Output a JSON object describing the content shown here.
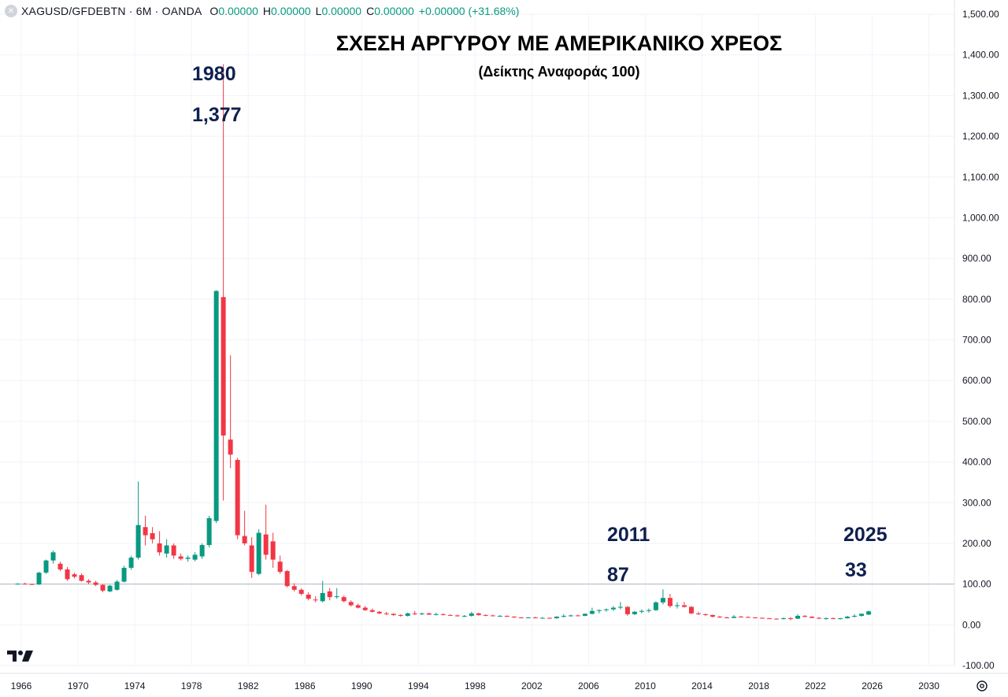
{
  "header": {
    "symbol": "XAGUSD/GFDEBTN · 6M · OANDA",
    "o_label": "O",
    "o_value": "0.00000",
    "h_label": "H",
    "h_value": "0.00000",
    "l_label": "L",
    "l_value": "0.00000",
    "c_label": "C",
    "c_value": "0.00000",
    "change": "+0.00000 (+31.68%)"
  },
  "annotations": {
    "peak_year": "1980",
    "peak_value": "1,377",
    "mid_year": "2011",
    "mid_value": "87",
    "last_year": "2025",
    "last_value": "33"
  },
  "colors": {
    "up": "#089981",
    "down": "#f23645",
    "grid": "#f0f3fa",
    "baseline": "#b2b5be",
    "annotation": "#0f1f4f"
  },
  "chart_data": {
    "type": "candlestick",
    "title": "ΣΧΕΣΗ ΑΡΓΥΡΟΥ ΜΕ ΑΜΕΡΙΚΑΝΙΚΟ ΧΡΕΟΣ",
    "subtitle": "(Δείκτης Αναφοράς 100)",
    "ylim": [
      -100,
      1500
    ],
    "xlim": [
      1964.5,
      2031.8
    ],
    "y_ticks": [
      "-100.00",
      "0.00",
      "100.00",
      "200.00",
      "300.00",
      "400.00",
      "500.00",
      "600.00",
      "700.00",
      "800.00",
      "900.00",
      "1,000.00",
      "1,100.00",
      "1,200.00",
      "1,300.00",
      "1,400.00",
      "1,500.00"
    ],
    "x_ticks": [
      "1966",
      "1970",
      "1974",
      "1978",
      "1982",
      "1986",
      "1990",
      "1994",
      "1998",
      "2002",
      "2006",
      "2010",
      "2014",
      "2018",
      "2022",
      "2026",
      "2030"
    ],
    "reference_line": 100,
    "grid": true,
    "candles": [
      {
        "t": 1965.75,
        "o": 100,
        "h": 102,
        "l": 99,
        "c": 101
      },
      {
        "t": 1966.25,
        "o": 101,
        "h": 103,
        "l": 99,
        "c": 100
      },
      {
        "t": 1966.75,
        "o": 100,
        "h": 101,
        "l": 98,
        "c": 99
      },
      {
        "t": 1967.25,
        "o": 99,
        "h": 130,
        "l": 98,
        "c": 128
      },
      {
        "t": 1967.75,
        "o": 128,
        "h": 160,
        "l": 125,
        "c": 158
      },
      {
        "t": 1968.25,
        "o": 158,
        "h": 182,
        "l": 150,
        "c": 178
      },
      {
        "t": 1968.75,
        "o": 150,
        "h": 155,
        "l": 132,
        "c": 136
      },
      {
        "t": 1969.25,
        "o": 136,
        "h": 142,
        "l": 108,
        "c": 112
      },
      {
        "t": 1969.75,
        "o": 124,
        "h": 128,
        "l": 114,
        "c": 118
      },
      {
        "t": 1970.25,
        "o": 122,
        "h": 126,
        "l": 106,
        "c": 108
      },
      {
        "t": 1970.75,
        "o": 108,
        "h": 112,
        "l": 100,
        "c": 104
      },
      {
        "t": 1971.25,
        "o": 104,
        "h": 108,
        "l": 95,
        "c": 98
      },
      {
        "t": 1971.75,
        "o": 98,
        "h": 100,
        "l": 80,
        "c": 84
      },
      {
        "t": 1972.25,
        "o": 82,
        "h": 98,
        "l": 80,
        "c": 96
      },
      {
        "t": 1972.75,
        "o": 86,
        "h": 110,
        "l": 84,
        "c": 106
      },
      {
        "t": 1973.25,
        "o": 106,
        "h": 145,
        "l": 104,
        "c": 140
      },
      {
        "t": 1973.75,
        "o": 140,
        "h": 170,
        "l": 135,
        "c": 165
      },
      {
        "t": 1974.25,
        "o": 165,
        "h": 352,
        "l": 160,
        "c": 245
      },
      {
        "t": 1974.75,
        "o": 240,
        "h": 268,
        "l": 195,
        "c": 220
      },
      {
        "t": 1975.25,
        "o": 225,
        "h": 240,
        "l": 200,
        "c": 210
      },
      {
        "t": 1975.75,
        "o": 200,
        "h": 230,
        "l": 170,
        "c": 178
      },
      {
        "t": 1976.25,
        "o": 175,
        "h": 210,
        "l": 165,
        "c": 195
      },
      {
        "t": 1976.75,
        "o": 195,
        "h": 200,
        "l": 162,
        "c": 170
      },
      {
        "t": 1977.25,
        "o": 168,
        "h": 175,
        "l": 158,
        "c": 162
      },
      {
        "t": 1977.75,
        "o": 162,
        "h": 170,
        "l": 155,
        "c": 165
      },
      {
        "t": 1978.25,
        "o": 160,
        "h": 178,
        "l": 156,
        "c": 172
      },
      {
        "t": 1978.75,
        "o": 168,
        "h": 200,
        "l": 162,
        "c": 196
      },
      {
        "t": 1979.25,
        "o": 196,
        "h": 268,
        "l": 190,
        "c": 262
      },
      {
        "t": 1979.75,
        "o": 255,
        "h": 822,
        "l": 250,
        "c": 820
      },
      {
        "t": 1980.25,
        "o": 805,
        "h": 1377,
        "l": 305,
        "c": 465
      },
      {
        "t": 1980.75,
        "o": 455,
        "h": 662,
        "l": 385,
        "c": 418
      },
      {
        "t": 1981.25,
        "o": 405,
        "h": 410,
        "l": 210,
        "c": 220
      },
      {
        "t": 1981.75,
        "o": 218,
        "h": 280,
        "l": 195,
        "c": 200
      },
      {
        "t": 1982.25,
        "o": 195,
        "h": 215,
        "l": 115,
        "c": 130
      },
      {
        "t": 1982.75,
        "o": 125,
        "h": 235,
        "l": 122,
        "c": 226
      },
      {
        "t": 1983.25,
        "o": 222,
        "h": 295,
        "l": 160,
        "c": 172
      },
      {
        "t": 1983.75,
        "o": 205,
        "h": 226,
        "l": 140,
        "c": 160
      },
      {
        "t": 1984.25,
        "o": 155,
        "h": 170,
        "l": 125,
        "c": 130
      },
      {
        "t": 1984.75,
        "o": 132,
        "h": 135,
        "l": 92,
        "c": 95
      },
      {
        "t": 1985.25,
        "o": 95,
        "h": 102,
        "l": 82,
        "c": 86
      },
      {
        "t": 1985.75,
        "o": 86,
        "h": 90,
        "l": 72,
        "c": 76
      },
      {
        "t": 1986.25,
        "o": 74,
        "h": 80,
        "l": 60,
        "c": 64
      },
      {
        "t": 1986.75,
        "o": 62,
        "h": 70,
        "l": 55,
        "c": 60
      },
      {
        "t": 1987.25,
        "o": 58,
        "h": 108,
        "l": 55,
        "c": 78
      },
      {
        "t": 1987.75,
        "o": 82,
        "h": 90,
        "l": 60,
        "c": 68
      },
      {
        "t": 1988.25,
        "o": 68,
        "h": 90,
        "l": 64,
        "c": 70
      },
      {
        "t": 1988.75,
        "o": 68,
        "h": 72,
        "l": 55,
        "c": 58
      },
      {
        "t": 1989.25,
        "o": 56,
        "h": 60,
        "l": 45,
        "c": 48
      },
      {
        "t": 1989.75,
        "o": 48,
        "h": 52,
        "l": 40,
        "c": 42
      },
      {
        "t": 1990.25,
        "o": 42,
        "h": 46,
        "l": 34,
        "c": 36
      },
      {
        "t": 1990.75,
        "o": 36,
        "h": 40,
        "l": 30,
        "c": 32
      },
      {
        "t": 1991.25,
        "o": 32,
        "h": 34,
        "l": 26,
        "c": 28
      },
      {
        "t": 1991.75,
        "o": 28,
        "h": 32,
        "l": 24,
        "c": 27
      },
      {
        "t": 1992.25,
        "o": 27,
        "h": 28,
        "l": 22,
        "c": 24
      },
      {
        "t": 1992.75,
        "o": 24,
        "h": 26,
        "l": 20,
        "c": 22
      },
      {
        "t": 1993.25,
        "o": 22,
        "h": 30,
        "l": 20,
        "c": 28
      },
      {
        "t": 1993.75,
        "o": 28,
        "h": 34,
        "l": 24,
        "c": 26
      },
      {
        "t": 1994.25,
        "o": 26,
        "h": 30,
        "l": 24,
        "c": 28
      },
      {
        "t": 1994.75,
        "o": 28,
        "h": 30,
        "l": 24,
        "c": 25
      },
      {
        "t": 1995.25,
        "o": 25,
        "h": 30,
        "l": 23,
        "c": 26
      },
      {
        "t": 1995.75,
        "o": 26,
        "h": 28,
        "l": 23,
        "c": 24
      },
      {
        "t": 1996.25,
        "o": 24,
        "h": 26,
        "l": 22,
        "c": 23
      },
      {
        "t": 1996.75,
        "o": 23,
        "h": 25,
        "l": 20,
        "c": 21
      },
      {
        "t": 1997.25,
        "o": 21,
        "h": 24,
        "l": 19,
        "c": 22
      },
      {
        "t": 1997.75,
        "o": 22,
        "h": 32,
        "l": 20,
        "c": 28
      },
      {
        "t": 1998.25,
        "o": 28,
        "h": 30,
        "l": 22,
        "c": 24
      },
      {
        "t": 1998.75,
        "o": 24,
        "h": 26,
        "l": 21,
        "c": 23
      },
      {
        "t": 1999.25,
        "o": 23,
        "h": 25,
        "l": 21,
        "c": 22
      },
      {
        "t": 1999.75,
        "o": 22,
        "h": 24,
        "l": 20,
        "c": 22
      },
      {
        "t": 2000.25,
        "o": 22,
        "h": 23,
        "l": 19,
        "c": 20
      },
      {
        "t": 2000.75,
        "o": 20,
        "h": 21,
        "l": 17,
        "c": 18
      },
      {
        "t": 2001.25,
        "o": 18,
        "h": 19,
        "l": 16,
        "c": 17
      },
      {
        "t": 2001.75,
        "o": 17,
        "h": 19,
        "l": 16,
        "c": 18
      },
      {
        "t": 2002.25,
        "o": 18,
        "h": 20,
        "l": 16,
        "c": 17
      },
      {
        "t": 2002.75,
        "o": 17,
        "h": 19,
        "l": 16,
        "c": 17
      },
      {
        "t": 2003.25,
        "o": 17,
        "h": 18,
        "l": 15,
        "c": 16
      },
      {
        "t": 2003.75,
        "o": 16,
        "h": 21,
        "l": 15,
        "c": 20
      },
      {
        "t": 2004.25,
        "o": 20,
        "h": 26,
        "l": 18,
        "c": 22
      },
      {
        "t": 2004.75,
        "o": 22,
        "h": 25,
        "l": 20,
        "c": 23
      },
      {
        "t": 2005.25,
        "o": 23,
        "h": 25,
        "l": 21,
        "c": 22
      },
      {
        "t": 2005.75,
        "o": 22,
        "h": 28,
        "l": 21,
        "c": 27
      },
      {
        "t": 2006.25,
        "o": 27,
        "h": 42,
        "l": 25,
        "c": 34
      },
      {
        "t": 2006.75,
        "o": 34,
        "h": 38,
        "l": 28,
        "c": 36
      },
      {
        "t": 2007.25,
        "o": 36,
        "h": 40,
        "l": 32,
        "c": 38
      },
      {
        "t": 2007.75,
        "o": 38,
        "h": 46,
        "l": 34,
        "c": 42
      },
      {
        "t": 2008.25,
        "o": 42,
        "h": 56,
        "l": 38,
        "c": 44
      },
      {
        "t": 2008.75,
        "o": 44,
        "h": 46,
        "l": 22,
        "c": 26
      },
      {
        "t": 2009.25,
        "o": 26,
        "h": 34,
        "l": 24,
        "c": 32
      },
      {
        "t": 2009.75,
        "o": 32,
        "h": 38,
        "l": 28,
        "c": 34
      },
      {
        "t": 2010.25,
        "o": 34,
        "h": 40,
        "l": 30,
        "c": 36
      },
      {
        "t": 2010.75,
        "o": 36,
        "h": 58,
        "l": 34,
        "c": 55
      },
      {
        "t": 2011.25,
        "o": 55,
        "h": 87,
        "l": 50,
        "c": 66
      },
      {
        "t": 2011.75,
        "o": 66,
        "h": 76,
        "l": 42,
        "c": 46
      },
      {
        "t": 2012.25,
        "o": 46,
        "h": 55,
        "l": 40,
        "c": 48
      },
      {
        "t": 2012.75,
        "o": 48,
        "h": 56,
        "l": 42,
        "c": 44
      },
      {
        "t": 2013.25,
        "o": 44,
        "h": 46,
        "l": 26,
        "c": 28
      },
      {
        "t": 2013.75,
        "o": 28,
        "h": 32,
        "l": 24,
        "c": 26
      },
      {
        "t": 2014.25,
        "o": 26,
        "h": 28,
        "l": 22,
        "c": 24
      },
      {
        "t": 2014.75,
        "o": 24,
        "h": 25,
        "l": 18,
        "c": 20
      },
      {
        "t": 2015.25,
        "o": 20,
        "h": 22,
        "l": 17,
        "c": 18
      },
      {
        "t": 2015.75,
        "o": 18,
        "h": 20,
        "l": 16,
        "c": 17
      },
      {
        "t": 2016.25,
        "o": 17,
        "h": 24,
        "l": 16,
        "c": 20
      },
      {
        "t": 2016.75,
        "o": 20,
        "h": 22,
        "l": 18,
        "c": 19
      },
      {
        "t": 2017.25,
        "o": 19,
        "h": 21,
        "l": 17,
        "c": 18
      },
      {
        "t": 2017.75,
        "o": 18,
        "h": 19,
        "l": 16,
        "c": 17
      },
      {
        "t": 2018.25,
        "o": 17,
        "h": 18,
        "l": 15,
        "c": 16
      },
      {
        "t": 2018.75,
        "o": 16,
        "h": 17,
        "l": 14,
        "c": 15
      },
      {
        "t": 2019.25,
        "o": 15,
        "h": 16,
        "l": 13,
        "c": 14
      },
      {
        "t": 2019.75,
        "o": 14,
        "h": 18,
        "l": 13,
        "c": 16
      },
      {
        "t": 2020.25,
        "o": 16,
        "h": 19,
        "l": 11,
        "c": 15
      },
      {
        "t": 2020.75,
        "o": 15,
        "h": 26,
        "l": 14,
        "c": 22
      },
      {
        "t": 2021.25,
        "o": 22,
        "h": 24,
        "l": 18,
        "c": 20
      },
      {
        "t": 2021.75,
        "o": 20,
        "h": 21,
        "l": 16,
        "c": 17
      },
      {
        "t": 2022.25,
        "o": 17,
        "h": 19,
        "l": 14,
        "c": 15
      },
      {
        "t": 2022.75,
        "o": 15,
        "h": 18,
        "l": 13,
        "c": 16
      },
      {
        "t": 2023.25,
        "o": 16,
        "h": 18,
        "l": 14,
        "c": 15
      },
      {
        "t": 2023.75,
        "o": 15,
        "h": 17,
        "l": 13,
        "c": 16
      },
      {
        "t": 2024.25,
        "o": 16,
        "h": 22,
        "l": 15,
        "c": 20
      },
      {
        "t": 2024.75,
        "o": 20,
        "h": 26,
        "l": 18,
        "c": 22
      },
      {
        "t": 2025.25,
        "o": 22,
        "h": 28,
        "l": 20,
        "c": 27
      },
      {
        "t": 2025.75,
        "o": 25,
        "h": 35,
        "l": 24,
        "c": 33
      }
    ]
  }
}
